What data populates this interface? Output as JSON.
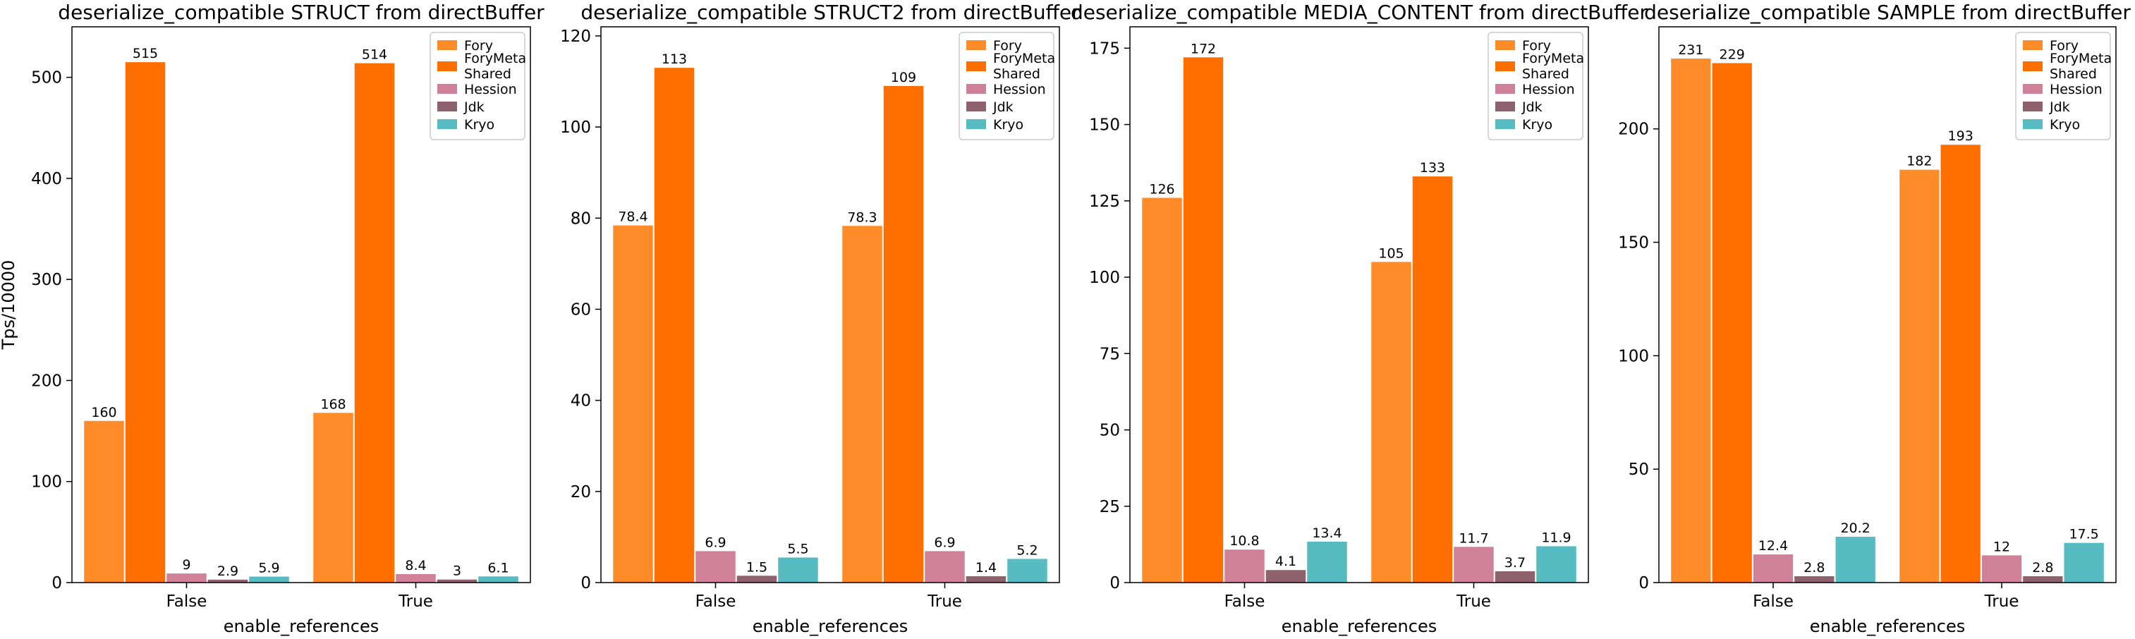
{
  "chart_data": [
    {
      "type": "bar",
      "title": "deserialize_compatible STRUCT from directBuffer",
      "xlabel": "enable_references",
      "ylabel": "Tps/10000",
      "ylim": [
        0,
        550
      ],
      "yticks": [
        0,
        100,
        200,
        300,
        400,
        500
      ],
      "categories": [
        "False",
        "True"
      ],
      "series": [
        {
          "name": "Fory",
          "values": [
            160,
            168
          ],
          "labels": [
            "160",
            "168"
          ]
        },
        {
          "name": "ForyMeta\nShared",
          "values": [
            515,
            514
          ],
          "labels": [
            "515",
            "514"
          ]
        },
        {
          "name": "Hession",
          "values": [
            9,
            8.4
          ],
          "labels": [
            "9",
            "8.4"
          ]
        },
        {
          "name": "Jdk",
          "values": [
            2.9,
            3
          ],
          "labels": [
            "2.9",
            "3"
          ]
        },
        {
          "name": "Kryo",
          "values": [
            5.9,
            6.1
          ],
          "labels": [
            "5.9",
            "6.1"
          ]
        }
      ],
      "legend": "top-right"
    },
    {
      "type": "bar",
      "title": "deserialize_compatible STRUCT2 from directBuffer",
      "xlabel": "enable_references",
      "ylabel": "",
      "ylim": [
        0,
        122
      ],
      "yticks": [
        0,
        20,
        40,
        60,
        80,
        100,
        120
      ],
      "categories": [
        "False",
        "True"
      ],
      "series": [
        {
          "name": "Fory",
          "values": [
            78.4,
            78.3
          ],
          "labels": [
            "78.4",
            "78.3"
          ]
        },
        {
          "name": "ForyMeta\nShared",
          "values": [
            113,
            109
          ],
          "labels": [
            "113",
            "109"
          ]
        },
        {
          "name": "Hession",
          "values": [
            6.9,
            6.9
          ],
          "labels": [
            "6.9",
            "6.9"
          ]
        },
        {
          "name": "Jdk",
          "values": [
            1.5,
            1.4
          ],
          "labels": [
            "1.5",
            "1.4"
          ]
        },
        {
          "name": "Kryo",
          "values": [
            5.5,
            5.2
          ],
          "labels": [
            "5.5",
            "5.2"
          ]
        }
      ],
      "legend": "top-right"
    },
    {
      "type": "bar",
      "title": "deserialize_compatible MEDIA_CONTENT from directBuffer",
      "xlabel": "enable_references",
      "ylabel": "",
      "ylim": [
        0,
        182
      ],
      "yticks": [
        0,
        25,
        50,
        75,
        100,
        125,
        150,
        175
      ],
      "categories": [
        "False",
        "True"
      ],
      "series": [
        {
          "name": "Fory",
          "values": [
            126,
            105
          ],
          "labels": [
            "126",
            "105"
          ]
        },
        {
          "name": "ForyMeta\nShared",
          "values": [
            172,
            133
          ],
          "labels": [
            "172",
            "133"
          ]
        },
        {
          "name": "Hession",
          "values": [
            10.8,
            11.7
          ],
          "labels": [
            "10.8",
            "11.7"
          ]
        },
        {
          "name": "Jdk",
          "values": [
            4.1,
            3.7
          ],
          "labels": [
            "4.1",
            "3.7"
          ]
        },
        {
          "name": "Kryo",
          "values": [
            13.4,
            11.9
          ],
          "labels": [
            "13.4",
            "11.9"
          ]
        }
      ],
      "legend": "top-right"
    },
    {
      "type": "bar",
      "title": "deserialize_compatible SAMPLE from directBuffer",
      "xlabel": "enable_references",
      "ylabel": "",
      "ylim": [
        0,
        245
      ],
      "yticks": [
        0,
        50,
        100,
        150,
        200
      ],
      "categories": [
        "False",
        "True"
      ],
      "series": [
        {
          "name": "Fory",
          "values": [
            231,
            182
          ],
          "labels": [
            "231",
            "182"
          ]
        },
        {
          "name": "ForyMeta\nShared",
          "values": [
            229,
            193
          ],
          "labels": [
            "229",
            "193"
          ]
        },
        {
          "name": "Hession",
          "values": [
            12.4,
            12
          ],
          "labels": [
            "12.4",
            "12"
          ]
        },
        {
          "name": "Jdk",
          "values": [
            2.8,
            2.8
          ],
          "labels": [
            "2.8",
            "2.8"
          ]
        },
        {
          "name": "Kryo",
          "values": [
            20.2,
            17.5
          ],
          "labels": [
            "20.2",
            "17.5"
          ]
        }
      ],
      "legend": "top-right"
    }
  ],
  "colors": [
    "#ff8c28",
    "#ff6f00",
    "#cf8199",
    "#8e626d",
    "#56bcc1"
  ]
}
